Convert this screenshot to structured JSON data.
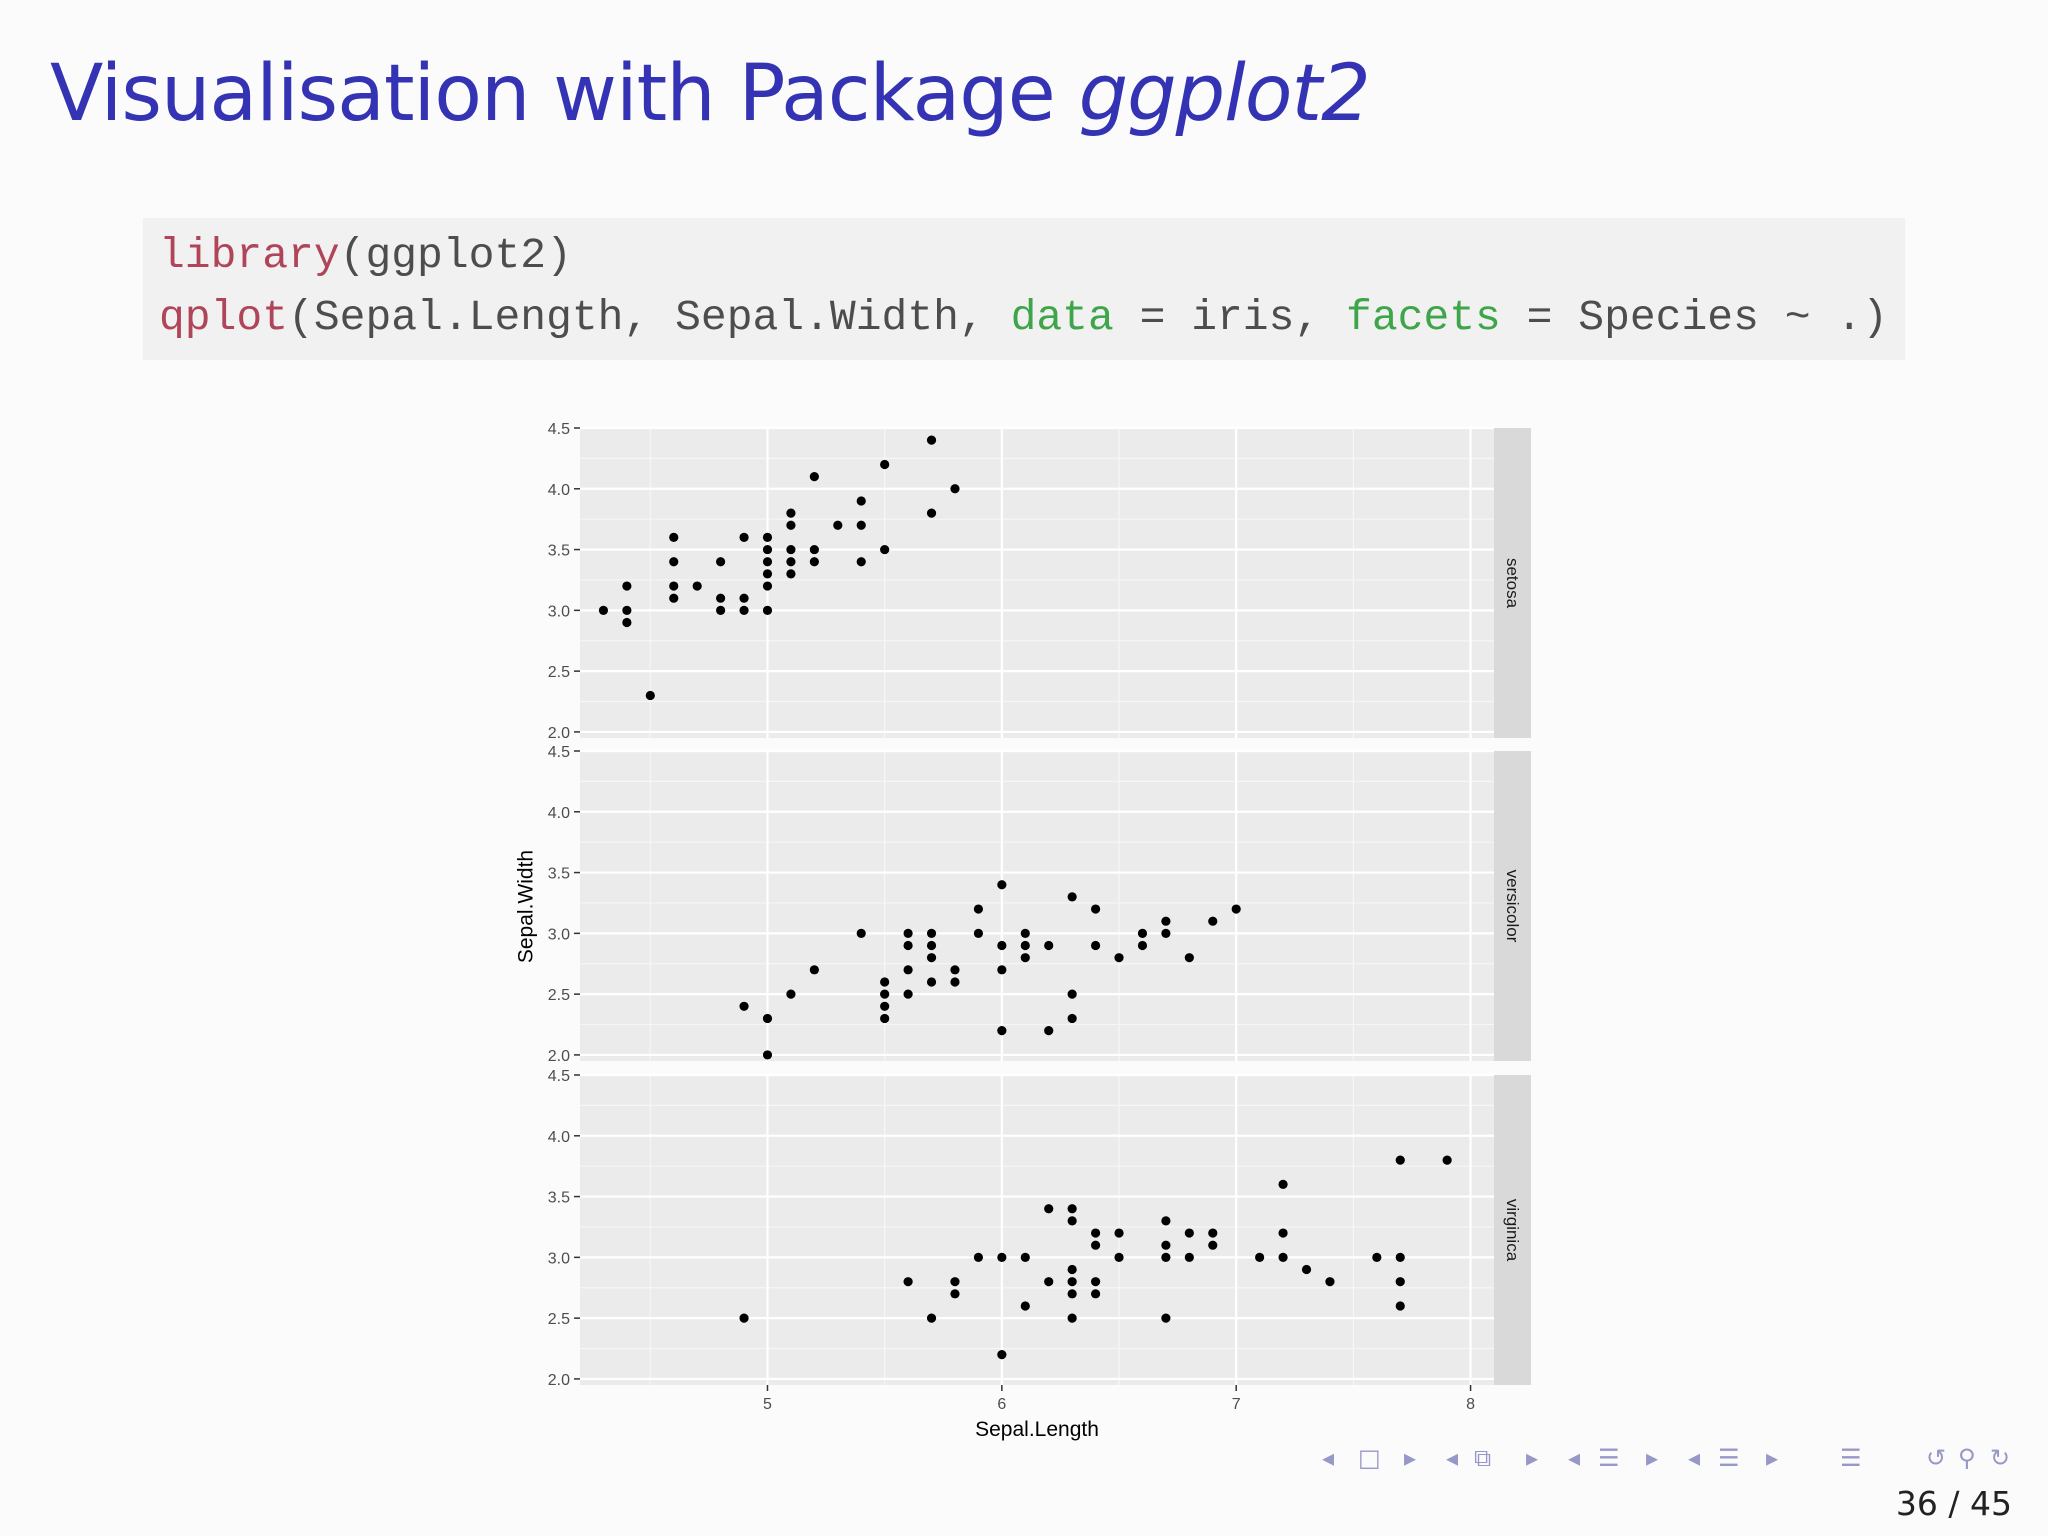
{
  "slide": {
    "title_main": "Visualisation with Package ",
    "title_pkg": "ggplot2",
    "page_current": "36",
    "page_sep": " / ",
    "page_total": "45"
  },
  "code": {
    "line1_fn": "library",
    "line1_rest": "(ggplot2)",
    "line2_fn": "qplot",
    "line2_a": "(Sepal.Length, Sepal.Width, ",
    "line2_kw1": "data",
    "line2_b": " = iris, ",
    "line2_kw2": "facets",
    "line2_c": " = Species ~ .)"
  },
  "nav_icons": [
    "nav-left-icon",
    "frame-icon",
    "nav-right-icon",
    "nav-left-icon",
    "subsection-icon",
    "nav-right-icon",
    "nav-left-icon",
    "section-icon",
    "nav-right-icon",
    "nav-left-icon",
    "section-icon",
    "nav-right-icon",
    "align-icon",
    "undo-icon",
    "search-icon",
    "redo-icon"
  ],
  "chart_data": {
    "type": "scatter",
    "facets": "Species ~ .",
    "xlabel": "Sepal.Length",
    "ylabel": "Sepal.Width",
    "xticks": [
      5,
      6,
      7,
      8
    ],
    "yticks": [
      "2.0",
      "2.5",
      "3.0",
      "3.5",
      "4.0",
      "4.5"
    ],
    "xlim": [
      4.2,
      8.1
    ],
    "ylim": [
      1.95,
      4.5
    ],
    "grid": true,
    "panel_color": "#ebebeb",
    "strip_color": "#d9d9d9",
    "point_color": "#000000",
    "panels": [
      {
        "strip": "setosa",
        "points": [
          [
            4.3,
            3.0
          ],
          [
            4.4,
            2.9
          ],
          [
            4.4,
            3.0
          ],
          [
            4.4,
            3.2
          ],
          [
            4.5,
            2.3
          ],
          [
            4.6,
            3.1
          ],
          [
            4.6,
            3.2
          ],
          [
            4.6,
            3.4
          ],
          [
            4.6,
            3.6
          ],
          [
            4.7,
            3.2
          ],
          [
            4.8,
            3.0
          ],
          [
            4.8,
            3.1
          ],
          [
            4.8,
            3.4
          ],
          [
            4.9,
            3.0
          ],
          [
            4.9,
            3.1
          ],
          [
            4.9,
            3.6
          ],
          [
            5.0,
            3.0
          ],
          [
            5.0,
            3.2
          ],
          [
            5.0,
            3.3
          ],
          [
            5.0,
            3.4
          ],
          [
            5.0,
            3.5
          ],
          [
            5.0,
            3.6
          ],
          [
            5.1,
            3.3
          ],
          [
            5.1,
            3.4
          ],
          [
            5.1,
            3.5
          ],
          [
            5.1,
            3.7
          ],
          [
            5.1,
            3.8
          ],
          [
            5.2,
            3.4
          ],
          [
            5.2,
            3.5
          ],
          [
            5.2,
            4.1
          ],
          [
            5.3,
            3.7
          ],
          [
            5.4,
            3.4
          ],
          [
            5.4,
            3.7
          ],
          [
            5.4,
            3.9
          ],
          [
            5.5,
            3.5
          ],
          [
            5.5,
            4.2
          ],
          [
            5.7,
            3.8
          ],
          [
            5.7,
            4.4
          ],
          [
            5.8,
            4.0
          ]
        ]
      },
      {
        "strip": "versicolor",
        "points": [
          [
            4.9,
            2.4
          ],
          [
            5.0,
            2.0
          ],
          [
            5.0,
            2.3
          ],
          [
            5.1,
            2.5
          ],
          [
            5.2,
            2.7
          ],
          [
            5.4,
            3.0
          ],
          [
            5.5,
            2.3
          ],
          [
            5.5,
            2.4
          ],
          [
            5.5,
            2.5
          ],
          [
            5.5,
            2.6
          ],
          [
            5.6,
            2.5
          ],
          [
            5.6,
            2.7
          ],
          [
            5.6,
            2.9
          ],
          [
            5.6,
            3.0
          ],
          [
            5.7,
            2.6
          ],
          [
            5.7,
            2.8
          ],
          [
            5.7,
            2.9
          ],
          [
            5.7,
            3.0
          ],
          [
            5.8,
            2.6
          ],
          [
            5.8,
            2.7
          ],
          [
            5.9,
            3.0
          ],
          [
            5.9,
            3.2
          ],
          [
            6.0,
            2.2
          ],
          [
            6.0,
            2.7
          ],
          [
            6.0,
            2.9
          ],
          [
            6.0,
            3.4
          ],
          [
            6.1,
            2.8
          ],
          [
            6.1,
            2.9
          ],
          [
            6.1,
            3.0
          ],
          [
            6.2,
            2.2
          ],
          [
            6.2,
            2.9
          ],
          [
            6.3,
            2.3
          ],
          [
            6.3,
            2.5
          ],
          [
            6.3,
            3.3
          ],
          [
            6.4,
            2.9
          ],
          [
            6.4,
            3.2
          ],
          [
            6.5,
            2.8
          ],
          [
            6.6,
            2.9
          ],
          [
            6.6,
            3.0
          ],
          [
            6.7,
            3.0
          ],
          [
            6.7,
            3.1
          ],
          [
            6.8,
            2.8
          ],
          [
            6.9,
            3.1
          ],
          [
            7.0,
            3.2
          ]
        ]
      },
      {
        "strip": "virginica",
        "points": [
          [
            4.9,
            2.5
          ],
          [
            5.6,
            2.8
          ],
          [
            5.7,
            2.5
          ],
          [
            5.8,
            2.7
          ],
          [
            5.8,
            2.8
          ],
          [
            5.9,
            3.0
          ],
          [
            6.0,
            2.2
          ],
          [
            6.0,
            3.0
          ],
          [
            6.1,
            2.6
          ],
          [
            6.1,
            3.0
          ],
          [
            6.2,
            2.8
          ],
          [
            6.2,
            3.4
          ],
          [
            6.3,
            2.5
          ],
          [
            6.3,
            2.7
          ],
          [
            6.3,
            2.8
          ],
          [
            6.3,
            2.9
          ],
          [
            6.3,
            3.3
          ],
          [
            6.3,
            3.4
          ],
          [
            6.4,
            2.7
          ],
          [
            6.4,
            2.8
          ],
          [
            6.4,
            3.1
          ],
          [
            6.4,
            3.2
          ],
          [
            6.5,
            3.0
          ],
          [
            6.5,
            3.2
          ],
          [
            6.7,
            2.5
          ],
          [
            6.7,
            3.0
          ],
          [
            6.7,
            3.1
          ],
          [
            6.7,
            3.3
          ],
          [
            6.8,
            3.0
          ],
          [
            6.8,
            3.2
          ],
          [
            6.9,
            3.1
          ],
          [
            6.9,
            3.2
          ],
          [
            7.1,
            3.0
          ],
          [
            7.2,
            3.0
          ],
          [
            7.2,
            3.2
          ],
          [
            7.2,
            3.6
          ],
          [
            7.3,
            2.9
          ],
          [
            7.4,
            2.8
          ],
          [
            7.6,
            3.0
          ],
          [
            7.7,
            2.6
          ],
          [
            7.7,
            2.8
          ],
          [
            7.7,
            3.0
          ],
          [
            7.7,
            3.8
          ],
          [
            7.9,
            3.8
          ]
        ]
      }
    ]
  }
}
